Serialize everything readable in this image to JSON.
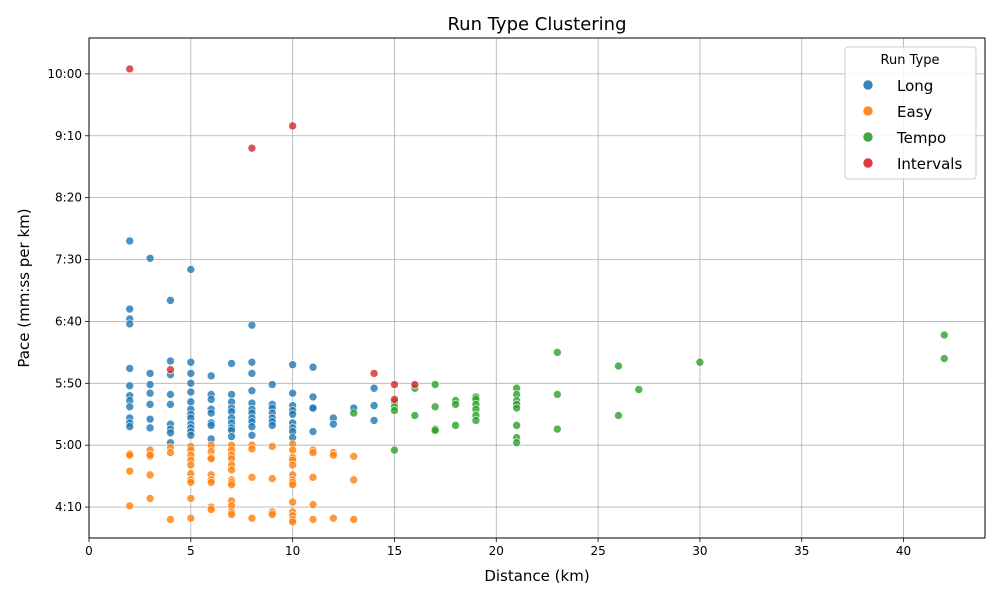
{
  "chart_data": {
    "type": "scatter",
    "title": "Run Type Clustering",
    "xlabel": "Distance (km)",
    "ylabel": "Pace (mm:ss per km)",
    "xlim": [
      0,
      44
    ],
    "ylim_seconds": [
      225,
      629
    ],
    "x_ticks": [
      0,
      5,
      10,
      15,
      20,
      25,
      30,
      35,
      40
    ],
    "y_ticks": [
      {
        "value": 250,
        "label": "4:10"
      },
      {
        "value": 300,
        "label": "5:00"
      },
      {
        "value": 350,
        "label": "5:50"
      },
      {
        "value": 400,
        "label": "6:40"
      },
      {
        "value": 450,
        "label": "7:30"
      },
      {
        "value": 500,
        "label": "8:20"
      },
      {
        "value": 550,
        "label": "9:10"
      },
      {
        "value": 600,
        "label": "10:00"
      }
    ],
    "grid": true,
    "legend": {
      "title": "Run Type",
      "placement": "top-right"
    },
    "series": [
      {
        "name": "Long",
        "color": "#1f77b4",
        "points": [
          [
            2,
            465
          ],
          [
            3,
            451
          ],
          [
            5,
            442
          ],
          [
            4,
            417
          ],
          [
            2,
            410
          ],
          [
            2,
            402
          ],
          [
            2,
            398
          ],
          [
            8,
            397
          ],
          [
            4,
            368
          ],
          [
            5,
            367
          ],
          [
            7,
            366
          ],
          [
            8,
            367
          ],
          [
            10,
            365
          ],
          [
            11,
            363
          ],
          [
            2,
            362
          ],
          [
            3,
            358
          ],
          [
            4,
            357
          ],
          [
            5,
            358
          ],
          [
            6,
            356
          ],
          [
            8,
            358
          ],
          [
            2,
            348
          ],
          [
            3,
            349
          ],
          [
            5,
            350
          ],
          [
            9,
            349
          ],
          [
            14,
            346
          ],
          [
            2,
            340
          ],
          [
            3,
            342
          ],
          [
            4,
            341
          ],
          [
            5,
            343
          ],
          [
            6,
            341
          ],
          [
            7,
            341
          ],
          [
            8,
            344
          ],
          [
            10,
            342
          ],
          [
            11,
            339
          ],
          [
            2,
            336
          ],
          [
            3,
            333
          ],
          [
            4,
            333
          ],
          [
            5,
            335
          ],
          [
            6,
            337
          ],
          [
            7,
            335
          ],
          [
            8,
            334
          ],
          [
            9,
            333
          ],
          [
            10,
            332
          ],
          [
            11,
            330
          ],
          [
            13,
            330
          ],
          [
            14,
            332
          ],
          [
            2,
            331
          ],
          [
            5,
            329
          ],
          [
            6,
            329
          ],
          [
            7,
            330
          ],
          [
            8,
            329
          ],
          [
            9,
            330
          ],
          [
            10,
            328
          ],
          [
            5,
            325
          ],
          [
            6,
            326
          ],
          [
            7,
            327
          ],
          [
            8,
            326
          ],
          [
            9,
            326
          ],
          [
            10,
            325
          ],
          [
            11,
            330
          ],
          [
            2,
            322
          ],
          [
            3,
            321
          ],
          [
            5,
            322
          ],
          [
            7,
            322
          ],
          [
            8,
            322
          ],
          [
            9,
            322
          ],
          [
            12,
            322
          ],
          [
            14,
            320
          ],
          [
            2,
            318
          ],
          [
            4,
            317
          ],
          [
            5,
            317
          ],
          [
            6,
            318
          ],
          [
            7,
            318
          ],
          [
            8,
            319
          ],
          [
            9,
            319
          ],
          [
            10,
            318
          ],
          [
            12,
            317
          ],
          [
            2,
            315
          ],
          [
            3,
            314
          ],
          [
            4,
            313
          ],
          [
            5,
            314
          ],
          [
            6,
            316
          ],
          [
            7,
            314
          ],
          [
            8,
            315
          ],
          [
            9,
            316
          ],
          [
            10,
            314
          ],
          [
            4,
            310
          ],
          [
            5,
            311
          ],
          [
            7,
            312
          ],
          [
            10,
            311
          ],
          [
            11,
            311
          ],
          [
            4,
            302
          ],
          [
            5,
            308
          ],
          [
            6,
            305
          ],
          [
            7,
            307
          ],
          [
            8,
            308
          ],
          [
            10,
            306
          ]
        ]
      },
      {
        "name": "Easy",
        "color": "#ff7f0e",
        "points": [
          [
            2,
            293
          ],
          [
            3,
            291
          ],
          [
            4,
            298
          ],
          [
            5,
            299
          ],
          [
            6,
            300
          ],
          [
            7,
            300
          ],
          [
            8,
            300
          ],
          [
            9,
            299
          ],
          [
            10,
            301
          ],
          [
            11,
            296
          ],
          [
            12,
            294
          ],
          [
            13,
            291
          ],
          [
            3,
            296
          ],
          [
            4,
            294
          ],
          [
            5,
            296
          ],
          [
            6,
            295
          ],
          [
            7,
            296
          ],
          [
            8,
            297
          ],
          [
            10,
            296
          ],
          [
            11,
            294
          ],
          [
            12,
            292
          ],
          [
            2,
            292
          ],
          [
            3,
            292
          ],
          [
            5,
            292
          ],
          [
            6,
            290
          ],
          [
            7,
            292
          ],
          [
            10,
            290
          ],
          [
            5,
            288
          ],
          [
            6,
            289
          ],
          [
            7,
            289
          ],
          [
            10,
            288
          ],
          [
            5,
            284
          ],
          [
            7,
            284
          ],
          [
            10,
            284
          ],
          [
            2,
            279
          ],
          [
            3,
            276
          ],
          [
            5,
            277
          ],
          [
            6,
            276
          ],
          [
            7,
            280
          ],
          [
            8,
            274
          ],
          [
            9,
            273
          ],
          [
            10,
            276
          ],
          [
            11,
            274
          ],
          [
            13,
            272
          ],
          [
            5,
            272
          ],
          [
            6,
            272
          ],
          [
            7,
            272
          ],
          [
            10,
            272
          ],
          [
            5,
            270
          ],
          [
            6,
            270
          ],
          [
            7,
            270
          ],
          [
            10,
            270
          ],
          [
            7,
            268
          ],
          [
            10,
            268
          ],
          [
            3,
            257
          ],
          [
            5,
            257
          ],
          [
            7,
            255
          ],
          [
            10,
            254
          ],
          [
            2,
            251
          ],
          [
            6,
            250
          ],
          [
            7,
            251
          ],
          [
            11,
            252
          ],
          [
            6,
            248
          ],
          [
            7,
            246
          ],
          [
            9,
            246
          ],
          [
            10,
            246
          ],
          [
            7,
            244
          ],
          [
            9,
            244
          ],
          [
            10,
            243
          ],
          [
            8,
            241
          ],
          [
            12,
            241
          ],
          [
            11,
            240
          ],
          [
            13,
            240
          ],
          [
            4,
            240
          ],
          [
            5,
            241
          ],
          [
            10,
            240
          ],
          [
            10,
            238
          ]
        ]
      },
      {
        "name": "Tempo",
        "color": "#2ca02c",
        "points": [
          [
            23,
            375
          ],
          [
            42,
            389
          ],
          [
            42,
            370
          ],
          [
            26,
            364
          ],
          [
            30,
            367
          ],
          [
            16,
            346
          ],
          [
            17,
            349
          ],
          [
            21,
            346
          ],
          [
            27,
            345
          ],
          [
            19,
            339
          ],
          [
            21,
            341
          ],
          [
            23,
            341
          ],
          [
            15,
            335
          ],
          [
            18,
            336
          ],
          [
            19,
            337
          ],
          [
            21,
            336
          ],
          [
            18,
            333
          ],
          [
            19,
            333
          ],
          [
            21,
            333
          ],
          [
            15,
            331
          ],
          [
            17,
            331
          ],
          [
            19,
            329
          ],
          [
            21,
            330
          ],
          [
            13,
            326
          ],
          [
            15,
            328
          ],
          [
            16,
            324
          ],
          [
            19,
            324
          ],
          [
            26,
            324
          ],
          [
            19,
            320
          ],
          [
            18,
            316
          ],
          [
            21,
            316
          ],
          [
            17,
            313
          ],
          [
            23,
            313
          ],
          [
            17,
            312
          ],
          [
            21,
            306
          ],
          [
            21,
            302
          ],
          [
            15,
            296
          ]
        ]
      },
      {
        "name": "Intervals",
        "color": "#d62728",
        "points": [
          [
            2,
            604
          ],
          [
            10,
            558
          ],
          [
            8,
            540
          ],
          [
            4,
            361
          ],
          [
            14,
            358
          ],
          [
            15,
            349
          ],
          [
            16,
            349
          ],
          [
            15,
            337
          ]
        ]
      }
    ]
  }
}
